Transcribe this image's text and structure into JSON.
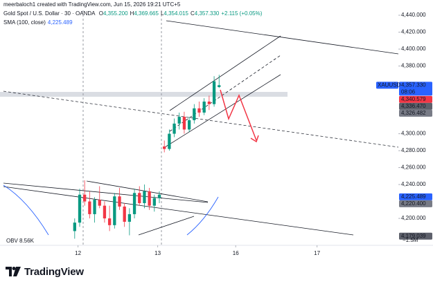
{
  "header": {
    "author_line": "meerbaloch1 created with TradingView.com, Jun 15, 2026 19:21 UTC+5",
    "symbol": "Gold Spot / U.S. Dollar · 30 · OANDA",
    "ohlc": [
      {
        "key": "O",
        "value": "4,355.200"
      },
      {
        "key": "H",
        "value": "4,369.665"
      },
      {
        "key": "L",
        "value": "4,354.015"
      },
      {
        "key": "C",
        "value": "4,357.330"
      }
    ],
    "change": "+2.115 (+0.05%)",
    "sma_label": "SMA (100, close)",
    "sma_value": "4,225.489"
  },
  "chart_data": {
    "type": "candlestick",
    "x": [
      45,
      48,
      51,
      54,
      57,
      60,
      63,
      66,
      69,
      72,
      75,
      78,
      81,
      84,
      87,
      90,
      93,
      96,
      99,
      102,
      105,
      108,
      111,
      114,
      117,
      120,
      123,
      126,
      129,
      132
    ],
    "open": [
      4185,
      4195,
      4228,
      4220,
      4205,
      4222,
      4215,
      4200,
      4192,
      4226,
      4214,
      4196,
      4205,
      4230,
      4218,
      4232,
      4215,
      4224,
      4285,
      4282,
      4300,
      4312,
      4320,
      4305,
      4316,
      4330,
      4325,
      4338,
      4335,
      4355.2
    ],
    "high": [
      4200,
      4235,
      4245,
      4232,
      4225,
      4238,
      4220,
      4215,
      4230,
      4236,
      4218,
      4212,
      4235,
      4238,
      4240,
      4236,
      4228,
      4232,
      4292,
      4305,
      4318,
      4325,
      4326,
      4320,
      4335,
      4338,
      4342,
      4345,
      4368,
      4369.665
    ],
    "low": [
      4176,
      4190,
      4215,
      4200,
      4195,
      4212,
      4195,
      4185,
      4188,
      4210,
      4190,
      4180,
      4200,
      4215,
      4212,
      4210,
      4208,
      4218,
      4278,
      4280,
      4296,
      4305,
      4300,
      4302,
      4312,
      4320,
      4322,
      4328,
      4332,
      4354.015
    ],
    "close": [
      4195,
      4228,
      4220,
      4205,
      4222,
      4215,
      4200,
      4192,
      4226,
      4214,
      4196,
      4205,
      4230,
      4218,
      4232,
      4215,
      4224,
      4228,
      4282,
      4300,
      4312,
      4320,
      4305,
      4316,
      4330,
      4325,
      4338,
      4335,
      4362,
      4357.33
    ],
    "up_color": "#089981",
    "down_color": "#f23645",
    "xlim": [
      0,
      240
    ],
    "ylim": [
      4168.2,
      4458
    ],
    "xticks": [
      {
        "value": 47,
        "label": "12"
      },
      {
        "value": 95,
        "label": "13"
      },
      {
        "value": 142,
        "label": "16"
      },
      {
        "value": 191,
        "label": "17"
      }
    ],
    "yticks": [
      {
        "value": 4440,
        "label": "4,440.000"
      },
      {
        "value": 4420,
        "label": "4,420.000"
      },
      {
        "value": 4400,
        "label": "4,400.000"
      },
      {
        "value": 4380,
        "label": "4,380.000"
      },
      {
        "value": 4300,
        "label": "4,300.000"
      },
      {
        "value": 4280,
        "label": "4,280.000"
      },
      {
        "value": 4260,
        "label": "4,260.000"
      },
      {
        "value": 4240,
        "label": "4,240.000"
      },
      {
        "value": 4200,
        "label": "4,200.000"
      }
    ],
    "price_labels": [
      {
        "value": 4357.33,
        "label": "4,357.330",
        "color": "#2962ff"
      },
      {
        "value": 4340.579,
        "label": "4,340.579",
        "color": "#f23645"
      },
      {
        "value": 4336.47,
        "label": "4,336.470",
        "color": "#5d606b"
      },
      {
        "value": 4326.482,
        "label": "4,326.482",
        "color": "#787b86"
      },
      {
        "value": 4225.489,
        "label": "4,225.489",
        "color": "#2962ff"
      },
      {
        "value": 4220.4,
        "label": "4,220.400",
        "color": "#787b86"
      },
      {
        "value": 4179.039,
        "label": "4,179.039",
        "color": "#5d606b"
      }
    ],
    "symbol_tag": "XAUUSD",
    "countdown": "08:06",
    "obv_name": "OBV",
    "obv_value": "8.56K",
    "obv_axis_label": "−1.5M"
  },
  "footer": {
    "brand": "TradingView"
  }
}
